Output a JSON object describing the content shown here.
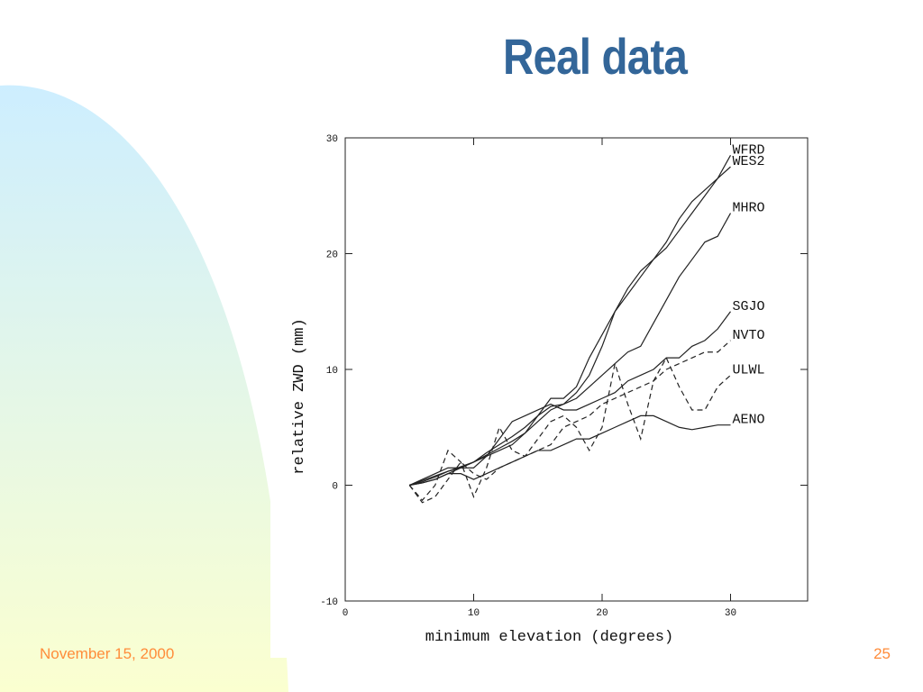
{
  "slide": {
    "title": "Real data",
    "footer_date": "November 15, 2000",
    "page_number": "25"
  },
  "chart_data": {
    "type": "line",
    "x_label": "minimum elevation (degrees)",
    "y_label": "relative ZWD (mm)",
    "x": [
      5,
      6,
      7,
      8,
      9,
      10,
      11,
      12,
      13,
      14,
      15,
      16,
      17,
      18,
      19,
      20,
      21,
      22,
      23,
      24,
      25,
      26,
      27,
      28,
      29,
      30
    ],
    "xlim": [
      0,
      36
    ],
    "xticks": [
      0,
      10,
      20,
      30
    ],
    "ylim": [
      -10,
      30
    ],
    "yticks": [
      -10,
      0,
      10,
      20,
      30
    ],
    "series": [
      {
        "name": "WFRD",
        "color": "#222222",
        "style": "solid",
        "values": [
          0,
          0.3,
          0.7,
          1.2,
          1.6,
          2,
          2.6,
          3.2,
          3.8,
          4.5,
          6,
          7.5,
          7.5,
          8.5,
          11,
          13,
          15,
          16.5,
          18,
          19.5,
          20.5,
          22,
          23.5,
          25,
          26.5,
          28.5
        ]
      },
      {
        "name": "WES2",
        "color": "#222222",
        "style": "solid",
        "values": [
          0,
          0.2,
          0.5,
          1,
          1.5,
          2,
          2.5,
          3,
          3.5,
          4.5,
          5.5,
          6.5,
          7,
          8,
          9.5,
          12,
          15,
          17,
          18.5,
          19.5,
          21,
          23,
          24.5,
          25.5,
          26.5,
          27.5
        ]
      },
      {
        "name": "MHRO",
        "color": "#222222",
        "style": "solid",
        "values": [
          0,
          0.4,
          0.8,
          1.2,
          1.5,
          2,
          2.8,
          3.5,
          4.2,
          5,
          6,
          6.8,
          7,
          7.5,
          8.5,
          9.5,
          10.5,
          11.5,
          12,
          14,
          16,
          18,
          19.5,
          21,
          21.5,
          23.5
        ]
      },
      {
        "name": "SGJO",
        "color": "#222222",
        "style": "solid",
        "values": [
          0,
          0.5,
          1,
          1.5,
          1.5,
          1.5,
          2.5,
          4,
          5.5,
          6,
          6.5,
          7,
          6.5,
          6.5,
          7,
          7.5,
          8,
          9,
          9.5,
          10,
          11,
          11,
          12,
          12.5,
          13.5,
          15
        ]
      },
      {
        "name": "NVTO",
        "color": "#222222",
        "style": "dashed",
        "values": [
          0,
          -1.5,
          -1,
          0.5,
          2,
          1,
          0.5,
          1.5,
          2,
          2.5,
          3,
          3.5,
          5,
          5.5,
          6,
          7,
          7.5,
          8,
          8.5,
          9,
          10,
          10.5,
          11,
          11.5,
          11.5,
          12.5
        ]
      },
      {
        "name": "ULWL",
        "color": "#222222",
        "style": "dashed",
        "values": [
          0,
          -1.3,
          0,
          3,
          2,
          -1,
          1.5,
          5,
          3,
          2.5,
          4,
          5.5,
          6,
          5,
          3,
          5,
          10.5,
          7,
          4,
          9,
          11,
          8.5,
          6.5,
          6.5,
          8.5,
          9.5
        ]
      },
      {
        "name": "AENO",
        "color": "#222222",
        "style": "solid",
        "values": [
          0,
          0.2,
          0.5,
          1,
          1,
          0.5,
          1,
          1.5,
          2,
          2.5,
          3,
          3,
          3.5,
          4,
          4,
          4.5,
          5,
          5.5,
          6,
          6,
          5.5,
          5,
          4.8,
          5,
          5.2,
          5.2
        ]
      }
    ]
  }
}
